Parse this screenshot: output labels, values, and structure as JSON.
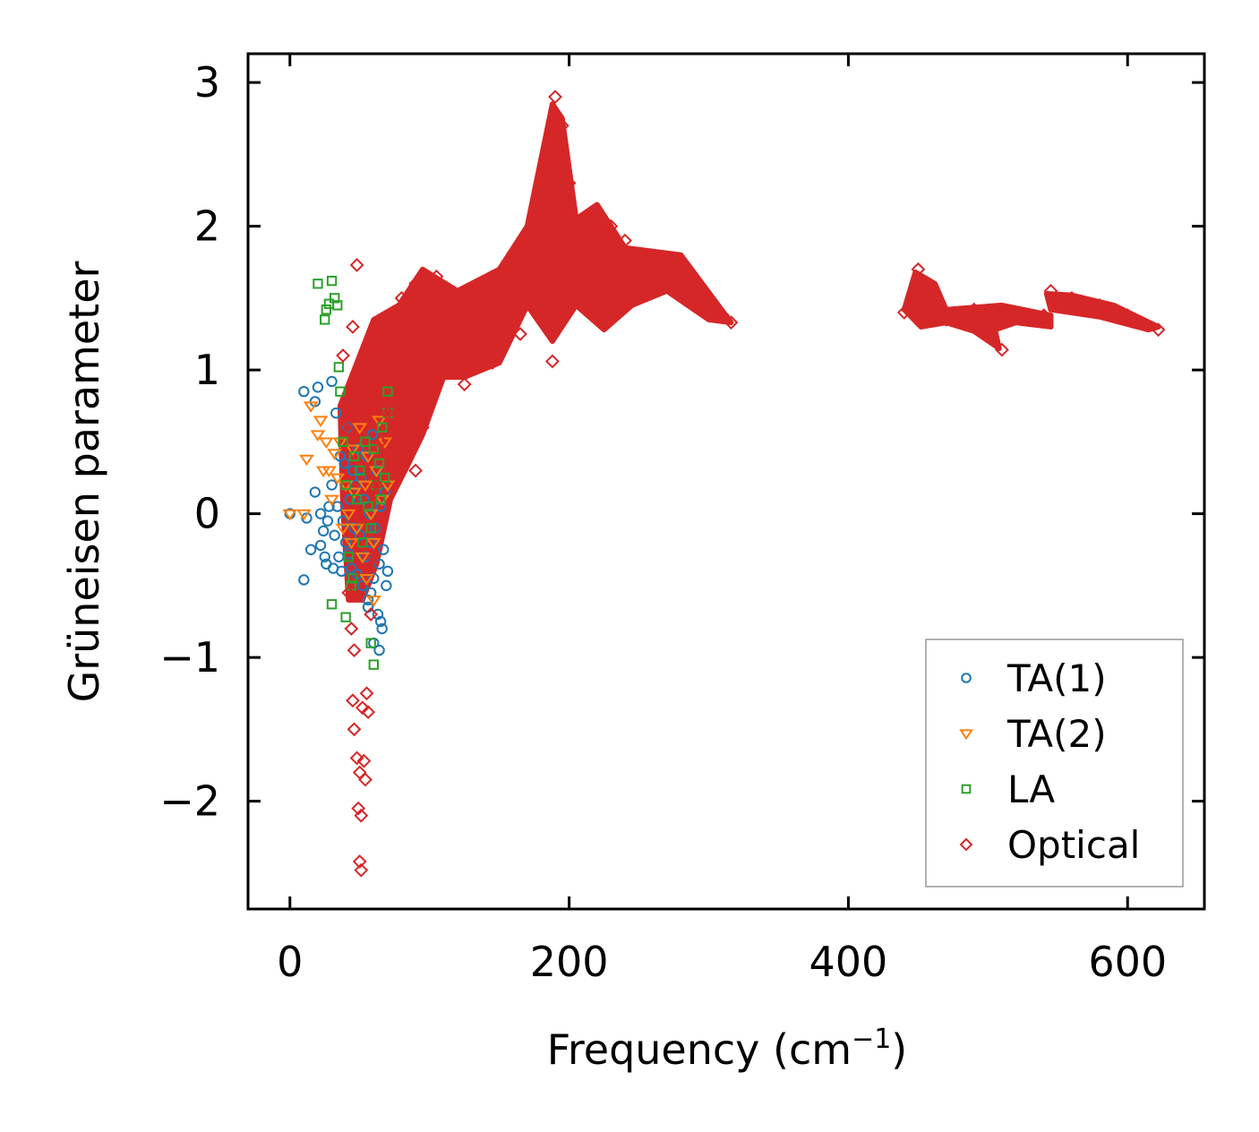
{
  "chart_data": {
    "type": "scatter",
    "xlabel": "Frequency (cm",
    "xlabel_sup": "−1",
    "xlabel_close": ")",
    "ylabel": "Grüneisen parameter",
    "xlim": [
      -30,
      655
    ],
    "ylim": [
      -2.75,
      3.2
    ],
    "xticks": [
      0,
      200,
      400,
      600
    ],
    "yticks": [
      3,
      2,
      1,
      0,
      -1,
      -2
    ],
    "xtick_labels": [
      "0",
      "200",
      "400",
      "600"
    ],
    "ytick_labels": [
      "3",
      "2",
      "1",
      "0",
      "−1",
      "−2"
    ],
    "grid": false,
    "legend_position": "lower-right",
    "series": [
      {
        "name": "TA(1)",
        "marker": "circle",
        "color": "#1f77b4",
        "points": [
          [
            0,
            0
          ],
          [
            10,
            0.85
          ],
          [
            12,
            -0.03
          ],
          [
            15,
            -0.25
          ],
          [
            18,
            0.78
          ],
          [
            18,
            0.15
          ],
          [
            20,
            0.88
          ],
          [
            22,
            0
          ],
          [
            22,
            -0.22
          ],
          [
            24,
            -0.12
          ],
          [
            25,
            -0.3
          ],
          [
            26,
            -0.35
          ],
          [
            27,
            -0.05
          ],
          [
            28,
            0.05
          ],
          [
            30,
            0.2
          ],
          [
            30,
            0.92
          ],
          [
            31,
            -0.38
          ],
          [
            32,
            -0.15
          ],
          [
            33,
            0.7
          ],
          [
            34,
            0.05
          ],
          [
            35,
            -0.3
          ],
          [
            36,
            0.4
          ],
          [
            37,
            -0.4
          ],
          [
            38,
            -0.05
          ],
          [
            39,
            0.35
          ],
          [
            40,
            -0.2
          ],
          [
            41,
            0.6
          ],
          [
            42,
            -0.28
          ],
          [
            43,
            0.1
          ],
          [
            44,
            -0.38
          ],
          [
            45,
            0.3
          ],
          [
            46,
            -0.1
          ],
          [
            47,
            0.2
          ],
          [
            48,
            -0.42
          ],
          [
            49,
            0.45
          ],
          [
            50,
            -0.15
          ],
          [
            51,
            0.25
          ],
          [
            52,
            -0.5
          ],
          [
            53,
            0.1
          ],
          [
            54,
            -0.3
          ],
          [
            55,
            0.4
          ],
          [
            56,
            -0.6
          ],
          [
            57,
            0
          ],
          [
            58,
            -0.2
          ],
          [
            59,
            0.55
          ],
          [
            60,
            -0.45
          ],
          [
            61,
            -0.1
          ],
          [
            62,
            0.3
          ],
          [
            63,
            -0.7
          ],
          [
            64,
            -0.35
          ],
          [
            65,
            0.05
          ],
          [
            66,
            -0.8
          ],
          [
            67,
            -0.25
          ],
          [
            68,
            0.15
          ],
          [
            69,
            -0.5
          ],
          [
            70,
            -0.4
          ],
          [
            10,
            -0.46
          ],
          [
            56,
            -0.65
          ],
          [
            60,
            -0.9
          ],
          [
            65,
            -0.75
          ],
          [
            64,
            -0.95
          ],
          [
            58,
            -0.55
          ]
        ]
      },
      {
        "name": "TA(2)",
        "marker": "triangle",
        "color": "#ff7f0e",
        "points": [
          [
            0,
            0
          ],
          [
            10,
            0
          ],
          [
            12,
            0.38
          ],
          [
            15,
            0.75
          ],
          [
            20,
            0.55
          ],
          [
            22,
            0.65
          ],
          [
            24,
            0.3
          ],
          [
            26,
            0.5
          ],
          [
            28,
            0.3
          ],
          [
            30,
            0.1
          ],
          [
            32,
            0.42
          ],
          [
            34,
            0.25
          ],
          [
            36,
            0.5
          ],
          [
            38,
            -0.1
          ],
          [
            40,
            0.2
          ],
          [
            42,
            0
          ],
          [
            44,
            -0.2
          ],
          [
            46,
            0.15
          ],
          [
            48,
            -0.1
          ],
          [
            50,
            0.6
          ],
          [
            52,
            -0.3
          ],
          [
            54,
            0.2
          ],
          [
            56,
            0.4
          ],
          [
            58,
            0
          ],
          [
            60,
            -0.2
          ],
          [
            62,
            0.3
          ],
          [
            64,
            0.65
          ],
          [
            66,
            0.1
          ],
          [
            68,
            0.5
          ],
          [
            70,
            0.2
          ],
          [
            45,
            0.45
          ],
          [
            55,
            -0.45
          ],
          [
            60,
            -0.6
          ]
        ]
      },
      {
        "name": "LA",
        "marker": "square",
        "color": "#2ca02c",
        "points": [
          [
            20,
            1.6
          ],
          [
            25,
            1.35
          ],
          [
            26,
            1.42
          ],
          [
            28,
            1.46
          ],
          [
            30,
            1.62
          ],
          [
            32,
            1.5
          ],
          [
            34,
            1.45
          ],
          [
            35,
            1.02
          ],
          [
            36,
            0.85
          ],
          [
            38,
            0.5
          ],
          [
            40,
            0.2
          ],
          [
            42,
            -0.3
          ],
          [
            44,
            -0.5
          ],
          [
            46,
            0.4
          ],
          [
            48,
            0.1
          ],
          [
            50,
            0.3
          ],
          [
            52,
            -0.2
          ],
          [
            54,
            0.5
          ],
          [
            56,
            0.05
          ],
          [
            58,
            -0.1
          ],
          [
            60,
            0.45
          ],
          [
            62,
            0.2
          ],
          [
            64,
            0.35
          ],
          [
            66,
            0.6
          ],
          [
            68,
            0.25
          ],
          [
            70,
            0.85
          ],
          [
            70,
            0.7
          ],
          [
            30,
            -0.63
          ],
          [
            40,
            -0.72
          ],
          [
            60,
            -1.05
          ],
          [
            58,
            -0.9
          ],
          [
            45,
            -0.45
          ],
          [
            65,
            0.1
          ]
        ]
      },
      {
        "name": "Optical",
        "marker": "diamond",
        "color": "#d62728",
        "points": [
          [
            48,
            1.73
          ],
          [
            45,
            1.3
          ],
          [
            50,
            1.0
          ],
          [
            42,
            0.8
          ],
          [
            38,
            1.1
          ],
          [
            40,
            0.6
          ],
          [
            44,
            -0.8
          ],
          [
            46,
            -0.95
          ],
          [
            42,
            -0.55
          ],
          [
            45,
            -1.3
          ],
          [
            46,
            -1.5
          ],
          [
            48,
            -1.7
          ],
          [
            50,
            -1.8
          ],
          [
            52,
            -1.35
          ],
          [
            54,
            -1.85
          ],
          [
            49,
            -2.05
          ],
          [
            51,
            -2.1
          ],
          [
            50,
            -2.42
          ],
          [
            51,
            -2.48
          ],
          [
            55,
            -1.25
          ],
          [
            56,
            -1.38
          ],
          [
            53,
            -1.72
          ],
          [
            58,
            -0.7
          ],
          [
            60,
            -0.3
          ],
          [
            62,
            0.2
          ],
          [
            65,
            0.5
          ],
          [
            70,
            0.7
          ],
          [
            75,
            1.1
          ],
          [
            80,
            1.5
          ],
          [
            85,
            1.2
          ],
          [
            90,
            1.6
          ],
          [
            95,
            1.4
          ],
          [
            100,
            1.5
          ],
          [
            105,
            1.65
          ],
          [
            110,
            1.3
          ],
          [
            120,
            1.4
          ],
          [
            130,
            1.2
          ],
          [
            140,
            1.5
          ],
          [
            150,
            1.6
          ],
          [
            160,
            1.7
          ],
          [
            170,
            1.8
          ],
          [
            180,
            1.6
          ],
          [
            188,
            1.06
          ],
          [
            190,
            2.9
          ],
          [
            195,
            2.7
          ],
          [
            200,
            2.3
          ],
          [
            210,
            2.0
          ],
          [
            220,
            1.9
          ],
          [
            230,
            2.0
          ],
          [
            240,
            1.9
          ],
          [
            250,
            1.75
          ],
          [
            260,
            1.7
          ],
          [
            270,
            1.65
          ],
          [
            280,
            1.7
          ],
          [
            290,
            1.55
          ],
          [
            300,
            1.45
          ],
          [
            310,
            1.38
          ],
          [
            316,
            1.33
          ],
          [
            90,
            0.3
          ],
          [
            95,
            0.6
          ],
          [
            100,
            0.8
          ],
          [
            110,
            1.1
          ],
          [
            125,
            0.9
          ],
          [
            145,
            1.05
          ],
          [
            165,
            1.25
          ],
          [
            185,
            1.35
          ],
          [
            200,
            1.45
          ],
          [
            225,
            1.4
          ],
          [
            250,
            1.5
          ],
          [
            440,
            1.4
          ],
          [
            450,
            1.7
          ],
          [
            460,
            1.55
          ],
          [
            470,
            1.35
          ],
          [
            480,
            1.4
          ],
          [
            490,
            1.42
          ],
          [
            500,
            1.3
          ],
          [
            510,
            1.14
          ],
          [
            520,
            1.4
          ],
          [
            530,
            1.35
          ],
          [
            540,
            1.38
          ],
          [
            545,
            1.55
          ],
          [
            560,
            1.5
          ],
          [
            580,
            1.45
          ],
          [
            600,
            1.38
          ],
          [
            622,
            1.28
          ]
        ]
      }
    ]
  }
}
